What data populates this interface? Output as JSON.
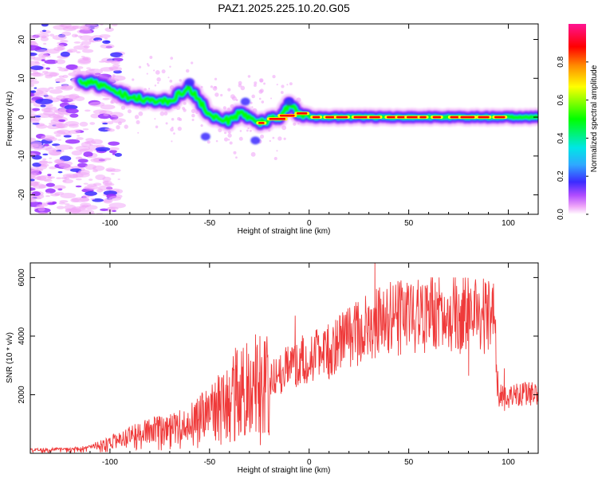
{
  "title": "PAZ1.2025.225.10.20.G05",
  "colors": {
    "snr_line": "#ef3a3a",
    "grid": "none",
    "axes": "#000000",
    "colormap": [
      "#ffffff",
      "#f0a8f8",
      "#9b30ff",
      "#3b2bff",
      "#2fa8ff",
      "#00e6e6",
      "#00ff00",
      "#ffff00",
      "#ff8c00",
      "#ff0000",
      "#ff1493"
    ]
  },
  "chart_data": [
    {
      "type": "heatmap",
      "title": "PAZ1.2025.225.10.20.G05",
      "xlabel": "Height of straight line (km)",
      "ylabel": "Frequency (Hz)",
      "xlim": [
        -140,
        115
      ],
      "ylim": [
        -25,
        24
      ],
      "x_ticks": [
        -100,
        -50,
        0,
        50,
        100
      ],
      "y_ticks": [
        -20,
        -10,
        0,
        10,
        20
      ],
      "colorbar": {
        "label": "Normalized spectral amplitude",
        "range": [
          0,
          1
        ],
        "ticks": [
          "0.0",
          "0.2",
          "0.4",
          "0.6",
          "0.8"
        ]
      },
      "ridge": {
        "description_points_km_hz": [
          [
            -110,
            9
          ],
          [
            -100,
            7.5
          ],
          [
            -90,
            5
          ],
          [
            -80,
            4.5
          ],
          [
            -70,
            4
          ],
          [
            -65,
            6
          ],
          [
            -60,
            7.5
          ],
          [
            -55,
            4
          ],
          [
            -50,
            0.5
          ],
          [
            -45,
            0
          ],
          [
            -40,
            -1
          ],
          [
            -35,
            1
          ],
          [
            -30,
            -0.5
          ],
          [
            -25,
            -1.5
          ],
          [
            -20,
            -0.5
          ],
          [
            -15,
            0
          ],
          [
            -12,
            1.5
          ],
          [
            -10,
            3.5
          ],
          [
            -5,
            0.5
          ],
          [
            0,
            0
          ],
          [
            25,
            0
          ],
          [
            50,
            0
          ],
          [
            75,
            0
          ],
          [
            100,
            0
          ],
          [
            115,
            0
          ]
        ],
        "peak_amplitude_region_km": [
          -25,
          95
        ]
      }
    },
    {
      "type": "line",
      "xlabel": "Height of straight line (km)",
      "ylabel": "SNR (10 * v/v)",
      "xlim": [
        -140,
        115
      ],
      "ylim": [
        0,
        6500
      ],
      "x_ticks": [
        -100,
        -50,
        0,
        50,
        100
      ],
      "y_ticks": [
        2000,
        4000,
        6000
      ],
      "series": [
        {
          "envelope_points_km_snr": [
            [
              -140,
              120
            ],
            [
              -120,
              150
            ],
            [
              -110,
              200
            ],
            [
              -100,
              400
            ],
            [
              -90,
              600
            ],
            [
              -80,
              800
            ],
            [
              -70,
              900
            ],
            [
              -60,
              1000
            ],
            [
              -50,
              1300
            ],
            [
              -45,
              1600
            ],
            [
              -40,
              1900
            ],
            [
              -35,
              2100
            ],
            [
              -30,
              2300
            ],
            [
              -25,
              2400
            ],
            [
              -20,
              2400
            ],
            [
              -15,
              2700
            ],
            [
              -10,
              3000
            ],
            [
              -5,
              3200
            ],
            [
              0,
              3300
            ],
            [
              5,
              3400
            ],
            [
              10,
              3500
            ],
            [
              15,
              3700
            ],
            [
              20,
              3900
            ],
            [
              25,
              4100
            ],
            [
              30,
              4300
            ],
            [
              35,
              4500
            ],
            [
              40,
              4600
            ],
            [
              50,
              4650
            ],
            [
              60,
              4700
            ],
            [
              70,
              4700
            ],
            [
              80,
              4700
            ],
            [
              90,
              4700
            ],
            [
              93,
              4650
            ],
            [
              95,
              2000
            ],
            [
              100,
              1900
            ],
            [
              105,
              2000
            ],
            [
              110,
              2050
            ],
            [
              115,
              2000
            ]
          ],
          "spikes_km_snr": [
            [
              -47,
              1300
            ],
            [
              -40,
              2600
            ],
            [
              -37,
              3600
            ],
            [
              -25,
              2500
            ],
            [
              -7,
              4700
            ],
            [
              33,
              6500
            ],
            [
              80,
              5300
            ],
            [
              98,
              2900
            ]
          ]
        }
      ]
    }
  ]
}
